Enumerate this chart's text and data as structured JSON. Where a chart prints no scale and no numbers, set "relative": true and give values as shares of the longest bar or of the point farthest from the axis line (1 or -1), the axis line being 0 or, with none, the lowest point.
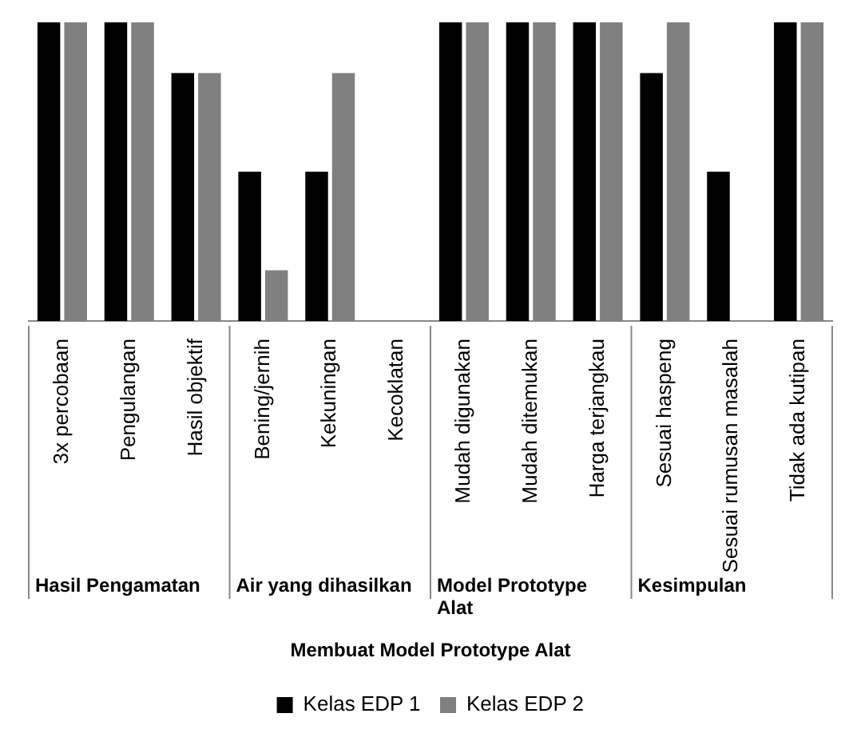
{
  "chart_data": {
    "type": "bar",
    "relative": true,
    "categories": [
      "3x percobaan",
      "Pengulangan",
      "Hasil objektif",
      "Bening/jernih",
      "Kekuningan",
      "Kecoklatan",
      "Mudah digunakan",
      "Mudah ditemukan",
      "Harga terjangkau",
      "Sesuai haspeng",
      "Sesuai rumusan masalah",
      "Tidak ada kutipan"
    ],
    "series": [
      {
        "name": "Kelas EDP 1",
        "color": "#000000",
        "values": [
          1,
          1,
          0.83,
          0.5,
          0.5,
          0,
          1,
          1,
          1,
          0.83,
          0.5,
          1
        ]
      },
      {
        "name": "Kelas EDP 2",
        "color": "#808080",
        "values": [
          1,
          1,
          0.83,
          0.17,
          0.83,
          0,
          1,
          1,
          1,
          1,
          0,
          1
        ]
      }
    ],
    "xlabel": "Membuat Model Prototype Alat",
    "annotations": [
      "Hasil Pengamatan",
      "Air yang dihasilkan",
      "Model Prototype Alat",
      "Kesimpulan"
    ],
    "legend": "bottom"
  }
}
